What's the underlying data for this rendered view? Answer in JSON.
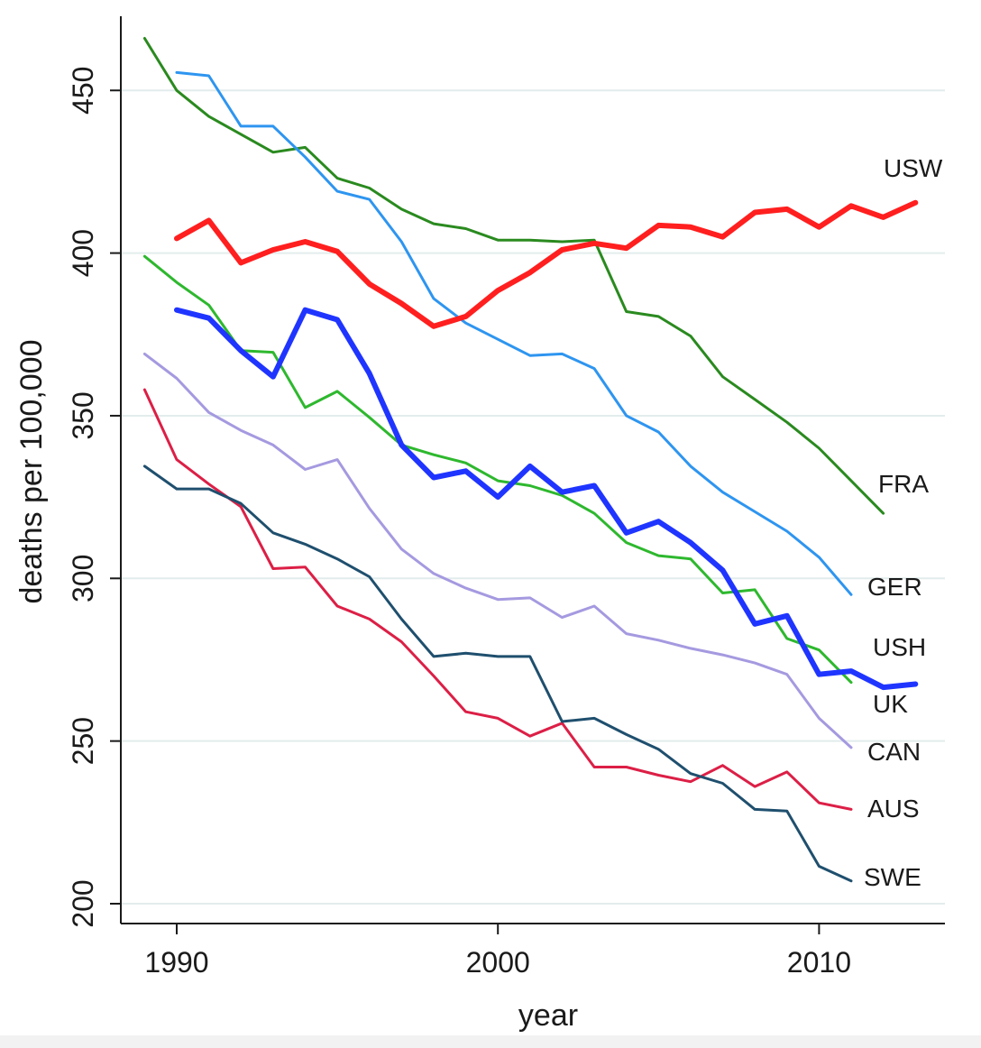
{
  "chart_data": {
    "type": "line",
    "title": "",
    "xlabel": "year",
    "ylabel": "deaths per 100,000",
    "xlim": [
      1988.3,
      2014.8
    ],
    "ylim": [
      186,
      471
    ],
    "x_ticks": [
      1990,
      2000,
      2010
    ],
    "y_ticks": [
      200,
      250,
      300,
      350,
      400,
      450
    ],
    "grid": "horizontal",
    "legend": "none",
    "series": [
      {
        "name": "USW",
        "color": "#ff1f1f",
        "width": 6,
        "x": [
          1990,
          1991,
          1992,
          1993,
          1994,
          1995,
          1996,
          1997,
          1998,
          1999,
          2000,
          2001,
          2002,
          2003,
          2004,
          2005,
          2006,
          2007,
          2008,
          2009,
          2010,
          2011,
          2012,
          2013
        ],
        "values": [
          404.5,
          410,
          397,
          401,
          403.5,
          400.5,
          390.5,
          384.5,
          377.5,
          380.5,
          388.5,
          394,
          401,
          403,
          401.5,
          408.5,
          408,
          405,
          412.5,
          413.5,
          408,
          414.5,
          411,
          415.5
        ]
      },
      {
        "name": "FRA",
        "color": "#2a8a1f",
        "width": 3,
        "x": [
          1989,
          1990,
          1991,
          1992,
          1993,
          1994,
          1995,
          1996,
          1997,
          1998,
          1999,
          2000,
          2001,
          2002,
          2003,
          2004,
          2005,
          2006,
          2007,
          2008,
          2009,
          2010,
          2011,
          2012
        ],
        "values": [
          466,
          450,
          442,
          436.5,
          431,
          432.5,
          423,
          420,
          413.5,
          409,
          407.5,
          404,
          404,
          403.5,
          404,
          382,
          380.5,
          374.5,
          362,
          355,
          348,
          340,
          330,
          320
        ]
      },
      {
        "name": "GER",
        "color": "#2e95f0",
        "width": 3,
        "x": [
          1990,
          1991,
          1992,
          1993,
          1994,
          1995,
          1996,
          1997,
          1998,
          1999,
          2000,
          2001,
          2002,
          2003,
          2004,
          2005,
          2006,
          2007,
          2008,
          2009,
          2010,
          2011
        ],
        "values": [
          455.5,
          454.5,
          439,
          439,
          429.5,
          419,
          416.5,
          403.5,
          386,
          378.5,
          373.5,
          368.5,
          369,
          364.5,
          350,
          345,
          334.5,
          326.5,
          320.5,
          314.5,
          306.5,
          295
        ]
      },
      {
        "name": "USH",
        "color": "#1f35ff",
        "width": 6,
        "x": [
          1990,
          1991,
          1992,
          1993,
          1994,
          1995,
          1996,
          1997,
          1998,
          1999,
          2000,
          2001,
          2002,
          2003,
          2004,
          2005,
          2006,
          2007,
          2008,
          2009,
          2010,
          2011,
          2012,
          2013
        ],
        "values": [
          382.5,
          380,
          370,
          362,
          382.5,
          379.5,
          363,
          341,
          331,
          333,
          325,
          334.5,
          326.5,
          328.5,
          314,
          317.5,
          311,
          302.5,
          286,
          288.5,
          270.5,
          271.5,
          266.5,
          267.5
        ]
      },
      {
        "name": "UK",
        "color": "#2eb82e",
        "width": 3,
        "x": [
          1989,
          1990,
          1991,
          1992,
          1993,
          1994,
          1995,
          1996,
          1997,
          1998,
          1999,
          2000,
          2001,
          2002,
          2003,
          2004,
          2005,
          2006,
          2007,
          2008,
          2009,
          2010,
          2011
        ],
        "values": [
          399,
          391,
          384,
          370,
          369.5,
          352.5,
          357.5,
          349.5,
          341,
          338,
          335.5,
          330,
          328.5,
          325.5,
          320,
          311,
          307,
          306,
          295.5,
          296.5,
          281.5,
          278,
          268
        ]
      },
      {
        "name": "CAN",
        "color": "#a59ae0",
        "width": 3,
        "x": [
          1989,
          1990,
          1991,
          1992,
          1993,
          1994,
          1995,
          1996,
          1997,
          1998,
          1999,
          2000,
          2001,
          2002,
          2003,
          2004,
          2005,
          2006,
          2007,
          2008,
          2009,
          2010,
          2011
        ],
        "values": [
          369,
          361.5,
          351,
          345.5,
          341,
          333.5,
          336.5,
          321.5,
          309,
          301.5,
          297,
          293.5,
          294,
          288,
          291.5,
          283,
          281,
          278.5,
          276.5,
          274,
          270.5,
          257,
          248
        ]
      },
      {
        "name": "AUS",
        "color": "#dc1f46",
        "width": 3,
        "x": [
          1989,
          1990,
          1991,
          1992,
          1993,
          1994,
          1995,
          1996,
          1997,
          1998,
          1999,
          2000,
          2001,
          2002,
          2003,
          2004,
          2005,
          2006,
          2007,
          2008,
          2009,
          2010,
          2011
        ],
        "values": [
          358,
          336.5,
          329,
          322,
          303,
          303.5,
          291.5,
          287.5,
          280.5,
          270,
          259,
          257,
          251.5,
          255.5,
          242,
          242,
          239.5,
          237.5,
          242.5,
          236,
          240.5,
          231,
          229
        ]
      },
      {
        "name": "SWE",
        "color": "#1f4f6e",
        "width": 3,
        "x": [
          1989,
          1990,
          1991,
          1992,
          1993,
          1994,
          1995,
          1996,
          1997,
          1998,
          1999,
          2000,
          2001,
          2002,
          2003,
          2004,
          2005,
          2006,
          2007,
          2008,
          2009,
          2010,
          2011
        ],
        "values": [
          334.5,
          327.5,
          327.5,
          323,
          314,
          310.5,
          306,
          300.5,
          287.5,
          276,
          277,
          276,
          276,
          256,
          257,
          252,
          247.5,
          240,
          237,
          229,
          228.5,
          211.5,
          207
        ]
      }
    ],
    "annotations": [
      "USW",
      "FRA",
      "GER",
      "USH",
      "UK",
      "CAN",
      "AUS",
      "SWE"
    ]
  }
}
